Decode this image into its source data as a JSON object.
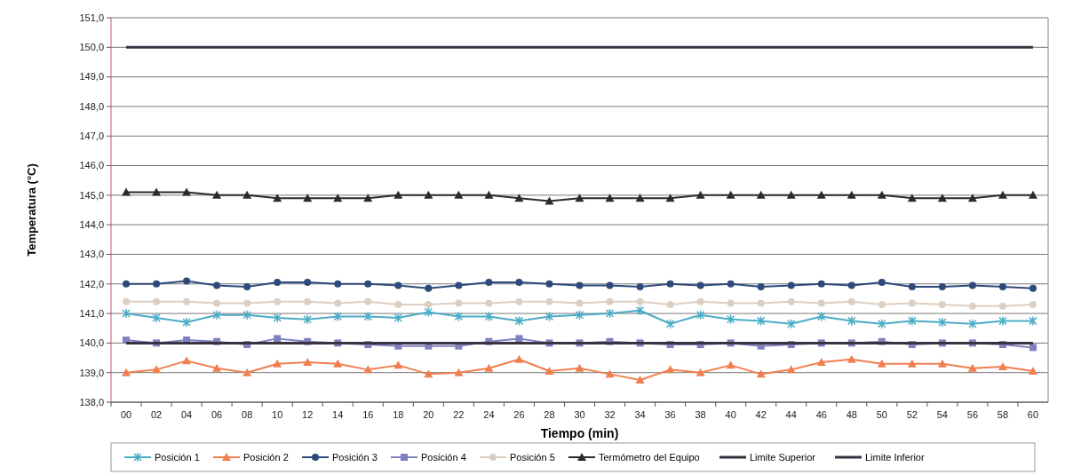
{
  "chart_data": {
    "type": "line",
    "xlabel": "Tiempo (min)",
    "ylabel": "Temperatura (°C)",
    "categories": [
      "00",
      "02",
      "04",
      "06",
      "08",
      "10",
      "12",
      "14",
      "16",
      "18",
      "20",
      "22",
      "24",
      "26",
      "28",
      "30",
      "32",
      "34",
      "36",
      "38",
      "40",
      "42",
      "44",
      "46",
      "48",
      "50",
      "52",
      "54",
      "56",
      "58",
      "60"
    ],
    "series": [
      {
        "name": "Posición 1",
        "color": "#4bacc6",
        "marker": "cross",
        "values": [
          141.0,
          140.85,
          140.7,
          140.95,
          140.95,
          140.85,
          140.8,
          140.9,
          140.9,
          140.85,
          141.05,
          140.9,
          140.9,
          140.75,
          140.9,
          140.95,
          141.0,
          141.1,
          140.65,
          140.95,
          140.8,
          140.75,
          140.65,
          140.9,
          140.75,
          140.65,
          140.75,
          140.7,
          140.65,
          140.75,
          140.75
        ]
      },
      {
        "name": "Posición 2",
        "color": "#f07f50",
        "marker": "triangle",
        "values": [
          139.0,
          139.1,
          139.4,
          139.15,
          139.0,
          139.3,
          139.35,
          139.3,
          139.1,
          139.25,
          138.95,
          139.0,
          139.15,
          139.45,
          139.05,
          139.15,
          138.95,
          138.75,
          139.1,
          139.0,
          139.25,
          138.95,
          139.1,
          139.35,
          139.45,
          139.3,
          139.3,
          139.3,
          139.15,
          139.2,
          139.05
        ]
      },
      {
        "name": "Posición 3",
        "color": "#2e4a7a",
        "marker": "circle",
        "values": [
          142.0,
          142.0,
          142.1,
          141.95,
          141.9,
          142.05,
          142.05,
          142.0,
          142.0,
          141.95,
          141.85,
          141.95,
          142.05,
          142.05,
          142.0,
          141.95,
          141.95,
          141.9,
          142.0,
          141.95,
          142.0,
          141.9,
          141.95,
          142.0,
          141.95,
          142.05,
          141.9,
          141.9,
          141.95,
          141.9,
          141.85
        ]
      },
      {
        "name": "Posición 4",
        "color": "#8080c0",
        "marker": "square",
        "values": [
          140.1,
          140.0,
          140.1,
          140.05,
          139.95,
          140.15,
          140.05,
          140.0,
          139.95,
          139.9,
          139.9,
          139.9,
          140.05,
          140.15,
          140.0,
          140.0,
          140.05,
          140.0,
          139.95,
          139.95,
          140.0,
          139.9,
          139.95,
          140.0,
          140.0,
          140.05,
          139.95,
          140.0,
          140.0,
          139.95,
          139.85
        ]
      },
      {
        "name": "Posición 5",
        "color": "#dccfc2",
        "marker": "circle",
        "values": [
          141.4,
          141.4,
          141.4,
          141.35,
          141.35,
          141.4,
          141.4,
          141.35,
          141.4,
          141.3,
          141.3,
          141.35,
          141.35,
          141.4,
          141.4,
          141.35,
          141.4,
          141.4,
          141.3,
          141.4,
          141.35,
          141.35,
          141.4,
          141.35,
          141.4,
          141.3,
          141.35,
          141.3,
          141.25,
          141.25,
          141.3
        ]
      },
      {
        "name": "Termómetro del Equipo",
        "color": "#2b2b2b",
        "marker": "triangle",
        "values": [
          145.1,
          145.1,
          145.1,
          145.0,
          145.0,
          144.9,
          144.9,
          144.9,
          144.9,
          145.0,
          145.0,
          145.0,
          145.0,
          144.9,
          144.8,
          144.9,
          144.9,
          144.9,
          144.9,
          145.0,
          145.0,
          145.0,
          145.0,
          145.0,
          145.0,
          145.0,
          144.9,
          144.9,
          144.9,
          145.0,
          145.0
        ]
      },
      {
        "name": "Limite Superior",
        "color": "#3a3240",
        "marker": "none",
        "values": [
          150,
          150,
          150,
          150,
          150,
          150,
          150,
          150,
          150,
          150,
          150,
          150,
          150,
          150,
          150,
          150,
          150,
          150,
          150,
          150,
          150,
          150,
          150,
          150,
          150,
          150,
          150,
          150,
          150,
          150,
          150
        ]
      },
      {
        "name": "Limite Inferior",
        "color": "#3a3240",
        "marker": "none",
        "values": [
          140,
          140,
          140,
          140,
          140,
          140,
          140,
          140,
          140,
          140,
          140,
          140,
          140,
          140,
          140,
          140,
          140,
          140,
          140,
          140,
          140,
          140,
          140,
          140,
          140,
          140,
          140,
          140,
          140,
          140,
          140
        ]
      }
    ],
    "ylim": [
      138,
      151
    ],
    "yticks": [
      {
        "value": 138,
        "label": "138,0"
      },
      {
        "value": 139,
        "label": "139,0"
      },
      {
        "value": 140,
        "label": "140,0"
      },
      {
        "value": 141,
        "label": "141,0"
      },
      {
        "value": 142,
        "label": "142,0"
      },
      {
        "value": 143,
        "label": "143,0"
      },
      {
        "value": 144,
        "label": "144,0"
      },
      {
        "value": 145,
        "label": "145,0"
      },
      {
        "value": 146,
        "label": "146,0"
      },
      {
        "value": 147,
        "label": "147,0"
      },
      {
        "value": 148,
        "label": "148,0"
      },
      {
        "value": 149,
        "label": "149,0"
      },
      {
        "value": 150,
        "label": "150,0"
      },
      {
        "value": 151,
        "label": "151,0"
      }
    ],
    "grid": "y",
    "legend": "bottom",
    "line_style": "solid"
  }
}
